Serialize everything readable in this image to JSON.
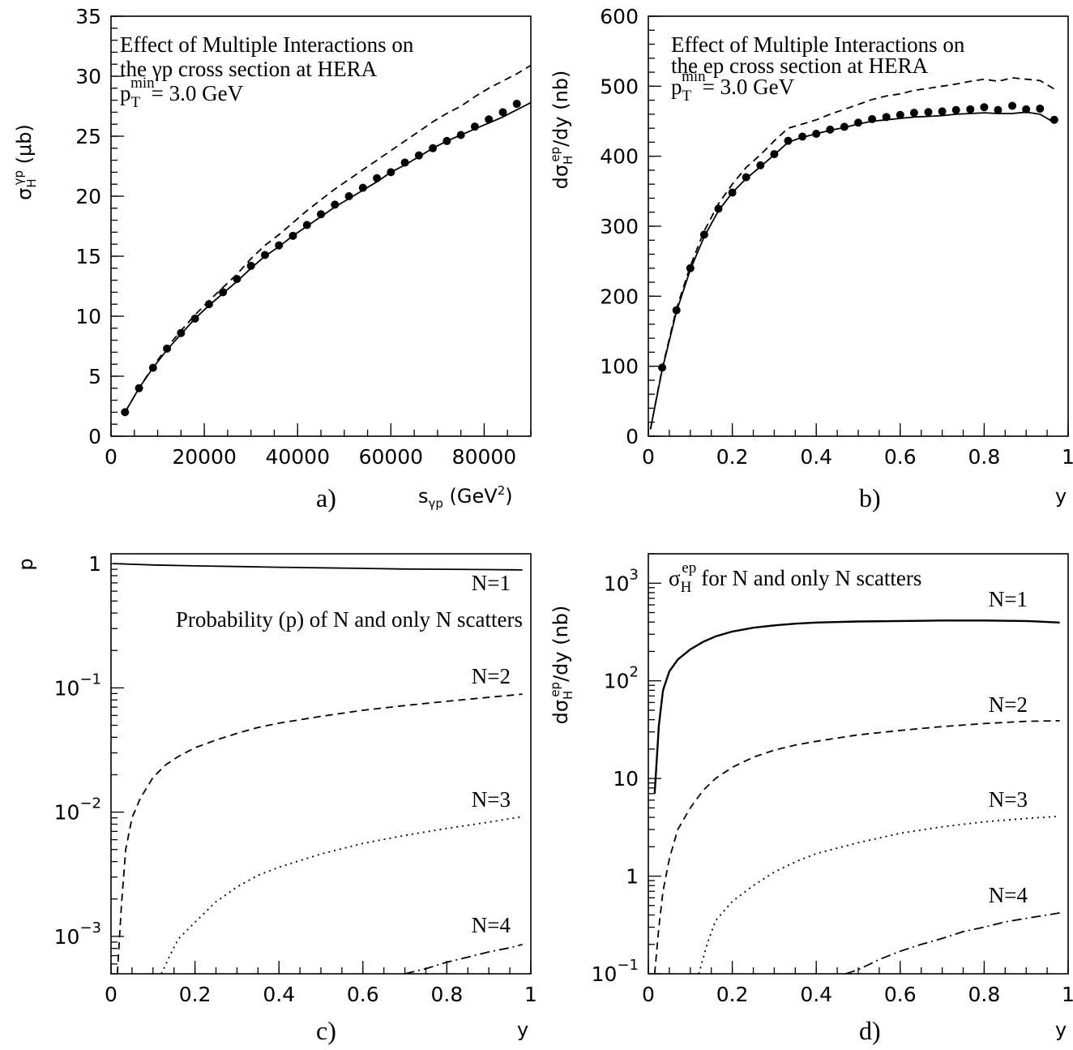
{
  "chart_data": [
    {
      "panel": "a)",
      "type": "line",
      "annotation": [
        "Effect of Multiple Interactions on",
        "the γp  cross section at HERA",
        "= 3.0 GeV"
      ],
      "annotation_ptmin": {
        "base": "p",
        "sub": "T",
        "sup": "min"
      },
      "xlabel": {
        "base": "s",
        "sub": "γp",
        "rest": " (GeV",
        "sup": "2",
        "close": ")"
      },
      "ylabel": {
        "base": "σ",
        "sub": "H",
        "sup": "γp",
        "rest": " (μb)"
      },
      "xlim": [
        0,
        90000
      ],
      "ylim": [
        0,
        35
      ],
      "xscale": "linear",
      "yscale": "linear",
      "xticks": [
        0,
        20000,
        40000,
        60000,
        80000
      ],
      "xtick_labels": [
        "0",
        "20000",
        "40000",
        "60000",
        "80000"
      ],
      "yticks": [
        0,
        5,
        10,
        15,
        20,
        25,
        30,
        35
      ],
      "ytick_labels": [
        "0",
        "5",
        "10",
        "15",
        "20",
        "25",
        "30",
        "35"
      ],
      "series": [
        {
          "style": "solid",
          "x": [
            3000,
            6000,
            9000,
            12000,
            15000,
            18000,
            21000,
            24000,
            27000,
            30000,
            33000,
            36000,
            39000,
            42000,
            45000,
            48000,
            51000,
            54000,
            57000,
            60000,
            63000,
            66000,
            69000,
            72000,
            75000,
            78000,
            81000,
            84000,
            87000,
            90000
          ],
          "y": [
            2.0,
            4.0,
            5.7,
            7.2,
            8.5,
            9.8,
            10.9,
            11.9,
            12.9,
            14.0,
            15.0,
            15.8,
            16.7,
            17.5,
            18.3,
            19.1,
            19.8,
            20.5,
            21.2,
            22.0,
            22.6,
            23.3,
            24.0,
            24.6,
            25.1,
            25.6,
            26.1,
            26.6,
            27.2,
            27.8
          ]
        },
        {
          "style": "dashed",
          "x": [
            3000,
            6000,
            9000,
            12000,
            15000,
            18000,
            21000,
            24000,
            27000,
            30000,
            33000,
            36000,
            39000,
            42000,
            45000,
            48000,
            51000,
            54000,
            57000,
            60000,
            63000,
            66000,
            69000,
            72000,
            75000,
            78000,
            81000,
            84000,
            87000,
            90000
          ],
          "y": [
            2.0,
            4.0,
            5.8,
            7.4,
            8.8,
            10.1,
            11.3,
            12.4,
            13.5,
            14.8,
            15.9,
            16.8,
            17.8,
            18.8,
            19.7,
            20.6,
            21.4,
            22.2,
            23.0,
            23.8,
            24.6,
            25.4,
            26.2,
            26.9,
            27.5,
            28.3,
            29.0,
            29.6,
            30.2,
            30.9
          ]
        },
        {
          "style": "points",
          "x": [
            3000,
            6000,
            9000,
            12000,
            15000,
            18000,
            21000,
            24000,
            27000,
            30000,
            33000,
            36000,
            39000,
            42000,
            45000,
            48000,
            51000,
            54000,
            57000,
            60000,
            63000,
            66000,
            69000,
            72000,
            75000,
            78000,
            81000,
            84000,
            87000
          ],
          "y": [
            2.0,
            4.0,
            5.7,
            7.3,
            8.6,
            9.8,
            11.0,
            12.0,
            13.1,
            14.2,
            15.1,
            15.9,
            16.7,
            17.6,
            18.5,
            19.3,
            20.0,
            20.7,
            21.5,
            22.0,
            22.8,
            23.4,
            24.0,
            24.6,
            25.1,
            25.8,
            26.4,
            27.0,
            27.7
          ]
        }
      ]
    },
    {
      "panel": "b)",
      "type": "line",
      "annotation": [
        "Effect of Multiple Interactions on",
        "the ep cross section at HERA",
        "= 3.0 GeV"
      ],
      "annotation_ptmin": {
        "base": "p",
        "sub": "T",
        "sup": "min"
      },
      "xlabel": {
        "base": "y"
      },
      "ylabel": {
        "base": "dσ",
        "sub": "H",
        "sup": "ep",
        "rest": "/dy (nb)"
      },
      "xlim": [
        0,
        1
      ],
      "ylim": [
        0,
        600
      ],
      "xscale": "linear",
      "yscale": "linear",
      "xticks": [
        0,
        0.2,
        0.4,
        0.6,
        0.8,
        1
      ],
      "xtick_labels": [
        "0",
        "0.2",
        "0.4",
        "0.6",
        "0.8",
        "1"
      ],
      "yticks": [
        0,
        100,
        200,
        300,
        400,
        500,
        600
      ],
      "ytick_labels": [
        "0",
        "100",
        "200",
        "300",
        "400",
        "500",
        "600"
      ],
      "series": [
        {
          "style": "solid",
          "x": [
            0.005,
            0.033,
            0.067,
            0.1,
            0.133,
            0.167,
            0.2,
            0.233,
            0.267,
            0.3,
            0.333,
            0.367,
            0.4,
            0.433,
            0.467,
            0.5,
            0.533,
            0.567,
            0.6,
            0.633,
            0.667,
            0.7,
            0.733,
            0.767,
            0.8,
            0.833,
            0.867,
            0.9,
            0.933,
            0.967
          ],
          "y": [
            10,
            95,
            178,
            238,
            285,
            322,
            348,
            368,
            385,
            402,
            420,
            427,
            432,
            437,
            441,
            446,
            450,
            452,
            454,
            456,
            457,
            458,
            460,
            461,
            462,
            461,
            461,
            463,
            460,
            448
          ]
        },
        {
          "style": "dashed",
          "x": [
            0.005,
            0.033,
            0.067,
            0.1,
            0.133,
            0.167,
            0.2,
            0.233,
            0.267,
            0.3,
            0.333,
            0.367,
            0.4,
            0.433,
            0.467,
            0.5,
            0.533,
            0.567,
            0.6,
            0.633,
            0.667,
            0.7,
            0.733,
            0.767,
            0.8,
            0.833,
            0.867,
            0.9,
            0.933,
            0.967
          ],
          "y": [
            10,
            97,
            182,
            243,
            293,
            332,
            360,
            384,
            402,
            422,
            440,
            446,
            452,
            460,
            467,
            474,
            481,
            486,
            489,
            494,
            497,
            500,
            503,
            507,
            510,
            507,
            512,
            510,
            508,
            496
          ]
        },
        {
          "style": "points",
          "x": [
            0.033,
            0.067,
            0.1,
            0.133,
            0.167,
            0.2,
            0.233,
            0.267,
            0.3,
            0.333,
            0.367,
            0.4,
            0.433,
            0.467,
            0.5,
            0.533,
            0.567,
            0.6,
            0.633,
            0.667,
            0.7,
            0.733,
            0.767,
            0.8,
            0.833,
            0.867,
            0.9,
            0.933,
            0.967
          ],
          "y": [
            98,
            180,
            240,
            288,
            325,
            348,
            370,
            387,
            403,
            422,
            428,
            432,
            438,
            442,
            448,
            453,
            456,
            459,
            462,
            463,
            464,
            466,
            467,
            470,
            466,
            472,
            467,
            468,
            452
          ]
        }
      ]
    },
    {
      "panel": "c)",
      "type": "line",
      "annotation": [
        "Probability (p) of N and only N scatters"
      ],
      "xlabel": {
        "base": "y"
      },
      "ylabel": {
        "base": "p"
      },
      "xlim": [
        0,
        1
      ],
      "ylim": [
        0.0005,
        1.2
      ],
      "xscale": "linear",
      "yscale": "log",
      "xticks": [
        0,
        0.2,
        0.4,
        0.6,
        0.8,
        1
      ],
      "xtick_labels": [
        "0",
        "0.2",
        "0.4",
        "0.6",
        "0.8",
        "1"
      ],
      "ytick_labels": [
        {
          "value": 1,
          "text": "1"
        },
        {
          "value": 0.1,
          "base": "10",
          "exp": "−1"
        },
        {
          "value": 0.01,
          "base": "10",
          "exp": "−2"
        },
        {
          "value": 0.001,
          "base": "10",
          "exp": "−3"
        }
      ],
      "series": [
        {
          "name": "N=1",
          "style": "solid",
          "x": [
            0.005,
            0.1,
            0.2,
            0.3,
            0.4,
            0.5,
            0.6,
            0.7,
            0.8,
            0.9,
            0.98
          ],
          "y": [
            1.0,
            0.975,
            0.96,
            0.948,
            0.935,
            0.925,
            0.915,
            0.905,
            0.9,
            0.895,
            0.89
          ]
        },
        {
          "name": "N=2",
          "style": "dashed",
          "x": [
            0.015,
            0.025,
            0.035,
            0.05,
            0.07,
            0.1,
            0.13,
            0.16,
            0.2,
            0.25,
            0.3,
            0.35,
            0.4,
            0.5,
            0.6,
            0.7,
            0.8,
            0.9,
            0.98
          ],
          "y": [
            0.0005,
            0.0018,
            0.005,
            0.009,
            0.013,
            0.019,
            0.024,
            0.028,
            0.033,
            0.038,
            0.043,
            0.048,
            0.052,
            0.059,
            0.066,
            0.072,
            0.078,
            0.084,
            0.089
          ]
        },
        {
          "name": "N=3",
          "style": "dotted",
          "x": [
            0.12,
            0.14,
            0.16,
            0.2,
            0.25,
            0.3,
            0.35,
            0.4,
            0.5,
            0.6,
            0.7,
            0.8,
            0.9,
            0.98
          ],
          "y": [
            0.0005,
            0.0007,
            0.00095,
            0.0013,
            0.0019,
            0.0025,
            0.0031,
            0.0036,
            0.0046,
            0.0056,
            0.0065,
            0.0074,
            0.0083,
            0.0092
          ]
        },
        {
          "name": "N=4",
          "style": "dashdot",
          "x": [
            0.7,
            0.75,
            0.8,
            0.85,
            0.9,
            0.95,
            0.98
          ],
          "y": [
            0.0005,
            0.00055,
            0.00062,
            0.00068,
            0.00075,
            0.00081,
            0.00086
          ]
        }
      ]
    },
    {
      "panel": "d)",
      "type": "line",
      "annotation": [
        "for N and only N scatters"
      ],
      "annotation_sigma": {
        "base": "σ",
        "sub": "H",
        "sup": "ep"
      },
      "xlabel": {
        "base": "y"
      },
      "ylabel": {
        "base": "dσ",
        "sub": "H",
        "sup": "ep",
        "rest": "/dy (nb)"
      },
      "xlim": [
        0,
        1
      ],
      "ylim": [
        0.1,
        2000
      ],
      "xscale": "linear",
      "yscale": "log",
      "xticks": [
        0,
        0.2,
        0.4,
        0.6,
        0.8,
        1
      ],
      "xtick_labels": [
        "0",
        "0.2",
        "0.4",
        "0.6",
        "0.8",
        "1"
      ],
      "ytick_labels": [
        {
          "value": 1000,
          "base": "10",
          "exp": "3"
        },
        {
          "value": 100,
          "base": "10",
          "exp": "2"
        },
        {
          "value": 10,
          "text": "10"
        },
        {
          "value": 1,
          "text": "1"
        },
        {
          "value": 0.1,
          "base": "10",
          "exp": "−1"
        }
      ],
      "series": [
        {
          "name": "N=1",
          "style": "solid",
          "x": [
            0.015,
            0.025,
            0.035,
            0.05,
            0.07,
            0.1,
            0.13,
            0.16,
            0.2,
            0.25,
            0.3,
            0.35,
            0.4,
            0.5,
            0.6,
            0.7,
            0.8,
            0.9,
            0.98
          ],
          "y": [
            7,
            35,
            80,
            125,
            165,
            210,
            250,
            285,
            320,
            350,
            370,
            385,
            395,
            405,
            410,
            415,
            415,
            410,
            395
          ]
        },
        {
          "name": "N=2",
          "style": "dashed",
          "x": [
            0.015,
            0.025,
            0.035,
            0.05,
            0.07,
            0.1,
            0.13,
            0.16,
            0.2,
            0.25,
            0.3,
            0.35,
            0.4,
            0.5,
            0.6,
            0.7,
            0.8,
            0.9,
            0.98
          ],
          "y": [
            0.1,
            0.3,
            0.7,
            1.5,
            3,
            5,
            7.5,
            10,
            13,
            16.5,
            19.5,
            22,
            24,
            28,
            31,
            34,
            36.5,
            38.5,
            39
          ]
        },
        {
          "name": "N=3",
          "style": "dotted",
          "x": [
            0.12,
            0.14,
            0.16,
            0.2,
            0.25,
            0.3,
            0.35,
            0.4,
            0.5,
            0.6,
            0.7,
            0.8,
            0.9,
            0.98
          ],
          "y": [
            0.1,
            0.2,
            0.35,
            0.55,
            0.8,
            1.1,
            1.4,
            1.7,
            2.2,
            2.75,
            3.2,
            3.6,
            3.9,
            4.1
          ]
        },
        {
          "name": "N=4",
          "style": "dashdot",
          "x": [
            0.47,
            0.5,
            0.55,
            0.6,
            0.65,
            0.7,
            0.75,
            0.8,
            0.85,
            0.9,
            0.95,
            0.98
          ],
          "y": [
            0.1,
            0.11,
            0.14,
            0.17,
            0.2,
            0.23,
            0.27,
            0.3,
            0.34,
            0.37,
            0.4,
            0.42
          ]
        }
      ]
    }
  ]
}
